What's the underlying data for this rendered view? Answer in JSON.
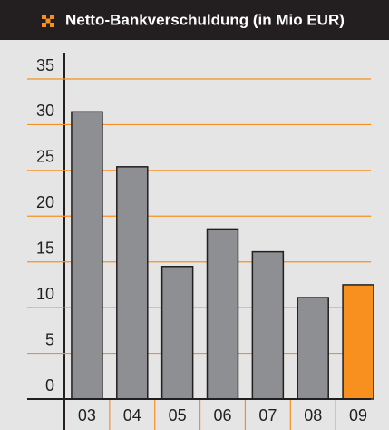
{
  "chart_data": {
    "type": "bar",
    "title": "Netto-Bankverschuldung (in Mio EUR)",
    "categories": [
      "03",
      "04",
      "05",
      "06",
      "07",
      "08",
      "09"
    ],
    "values": [
      31.4,
      25.4,
      14.5,
      18.6,
      16.1,
      11.1,
      12.5
    ],
    "colors": [
      "#8e8f93",
      "#8e8f93",
      "#8e8f93",
      "#8e8f93",
      "#8e8f93",
      "#8e8f93",
      "#f7901e"
    ],
    "ylim": [
      0,
      35
    ],
    "yticks": [
      0,
      5,
      10,
      15,
      20,
      25,
      30,
      35
    ],
    "grid": true
  }
}
